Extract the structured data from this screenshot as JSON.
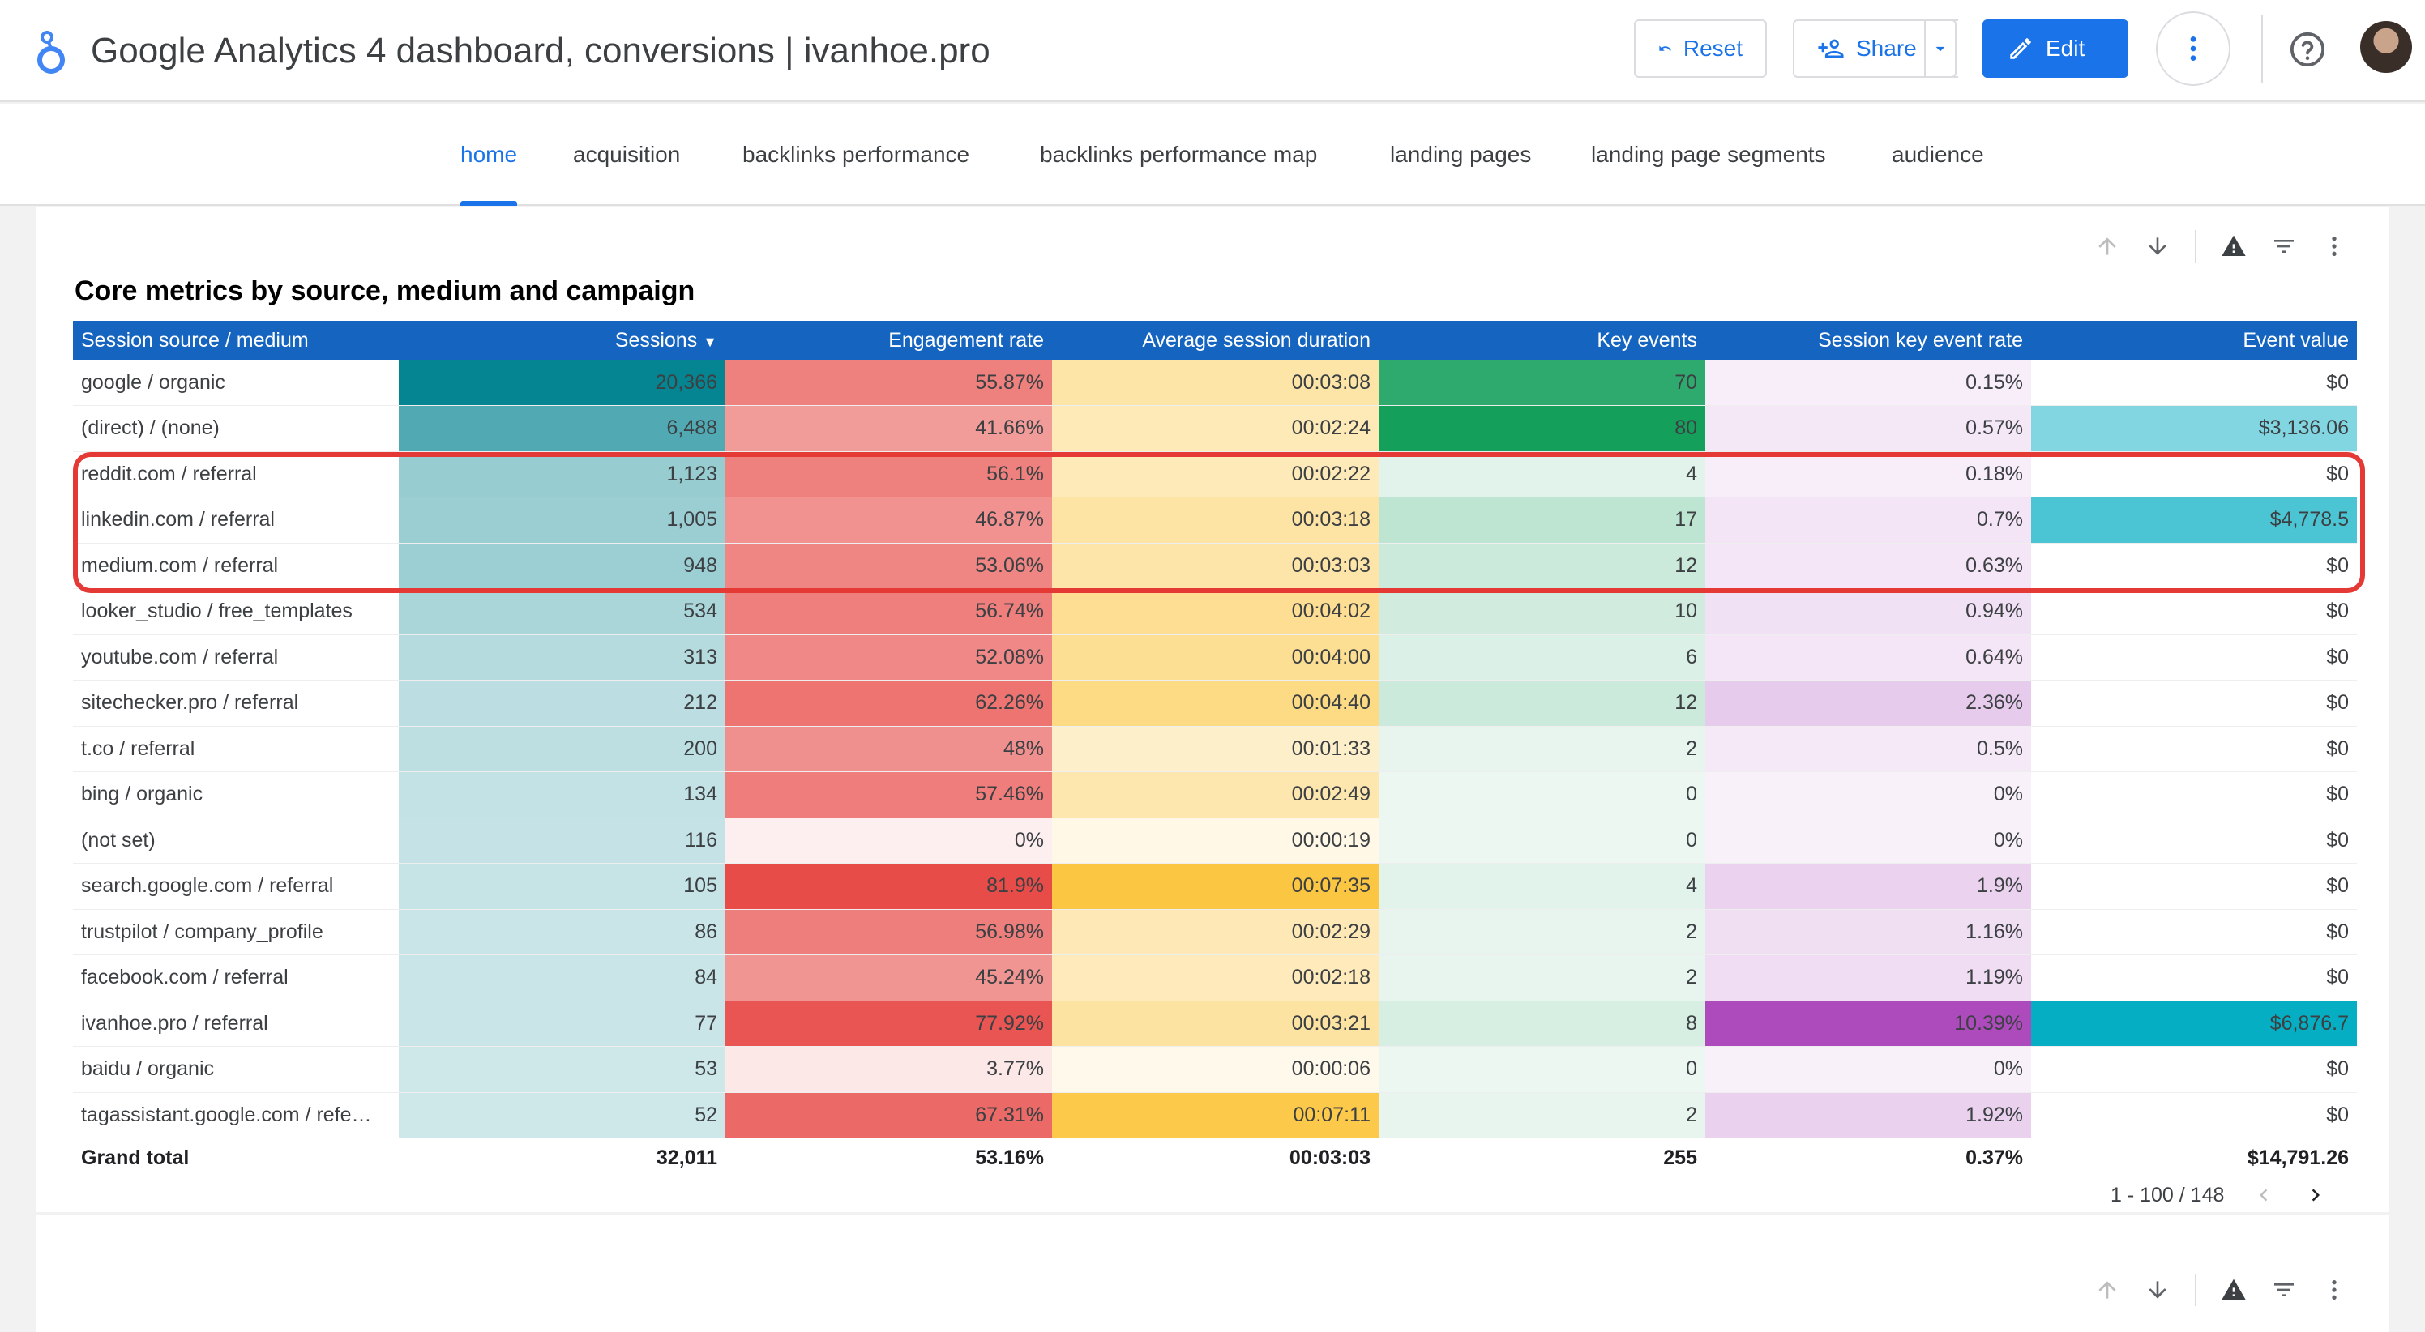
{
  "header": {
    "title": "Google Analytics 4 dashboard, conversions | ivanhoe.pro",
    "reset_label": "Reset",
    "share_label": "Share",
    "edit_label": "Edit"
  },
  "colors": {
    "accent": "#1a73e8",
    "table_header": "#1565c0",
    "highlight_outline": "#e53935"
  },
  "nav": {
    "tabs": [
      {
        "label": "home",
        "active": true
      },
      {
        "label": "acquisition"
      },
      {
        "label": "backlinks performance"
      },
      {
        "label": "backlinks performance map"
      },
      {
        "label": "landing pages"
      },
      {
        "label": "landing page segments"
      },
      {
        "label": "audience"
      }
    ]
  },
  "report": {
    "title": "Core metrics by source, medium and campaign",
    "columns": [
      "Session source / medium",
      "Sessions",
      "Engagement rate",
      "Average session duration",
      "Key events",
      "Session key event rate",
      "Event value"
    ],
    "sort_column": "Sessions",
    "rows": [
      [
        "google / organic",
        "20,366",
        "55.87%",
        "00:03:08",
        "70",
        "0.15%",
        "$0"
      ],
      [
        "(direct) / (none)",
        "6,488",
        "41.66%",
        "00:02:24",
        "80",
        "0.57%",
        "$3,136.06"
      ],
      [
        "reddit.com / referral",
        "1,123",
        "56.1%",
        "00:02:22",
        "4",
        "0.18%",
        "$0"
      ],
      [
        "linkedin.com / referral",
        "1,005",
        "46.87%",
        "00:03:18",
        "17",
        "0.7%",
        "$4,778.5"
      ],
      [
        "medium.com / referral",
        "948",
        "53.06%",
        "00:03:03",
        "12",
        "0.63%",
        "$0"
      ],
      [
        "looker_studio / free_templates",
        "534",
        "56.74%",
        "00:04:02",
        "10",
        "0.94%",
        "$0"
      ],
      [
        "youtube.com / referral",
        "313",
        "52.08%",
        "00:04:00",
        "6",
        "0.64%",
        "$0"
      ],
      [
        "sitechecker.pro / referral",
        "212",
        "62.26%",
        "00:04:40",
        "12",
        "2.36%",
        "$0"
      ],
      [
        "t.co / referral",
        "200",
        "48%",
        "00:01:33",
        "2",
        "0.5%",
        "$0"
      ],
      [
        "bing / organic",
        "134",
        "57.46%",
        "00:02:49",
        "0",
        "0%",
        "$0"
      ],
      [
        "(not set)",
        "116",
        "0%",
        "00:00:19",
        "0",
        "0%",
        "$0"
      ],
      [
        "search.google.com / referral",
        "105",
        "81.9%",
        "00:07:35",
        "4",
        "1.9%",
        "$0"
      ],
      [
        "trustpilot / company_profile",
        "86",
        "56.98%",
        "00:02:29",
        "2",
        "1.16%",
        "$0"
      ],
      [
        "facebook.com / referral",
        "84",
        "45.24%",
        "00:02:18",
        "2",
        "1.19%",
        "$0"
      ],
      [
        "ivanhoe.pro / referral",
        "77",
        "77.92%",
        "00:03:21",
        "8",
        "10.39%",
        "$6,876.7"
      ],
      [
        "baidu / organic",
        "53",
        "3.77%",
        "00:00:06",
        "0",
        "0%",
        "$0"
      ],
      [
        "tagassistant.google.com / refe…",
        "52",
        "67.31%",
        "00:07:11",
        "2",
        "1.92%",
        "$0"
      ]
    ],
    "total": [
      "Grand total",
      "32,011",
      "53.16%",
      "00:03:03",
      "255",
      "0.37%",
      "$14,791.26"
    ],
    "pagination": "1 - 100 / 148"
  }
}
